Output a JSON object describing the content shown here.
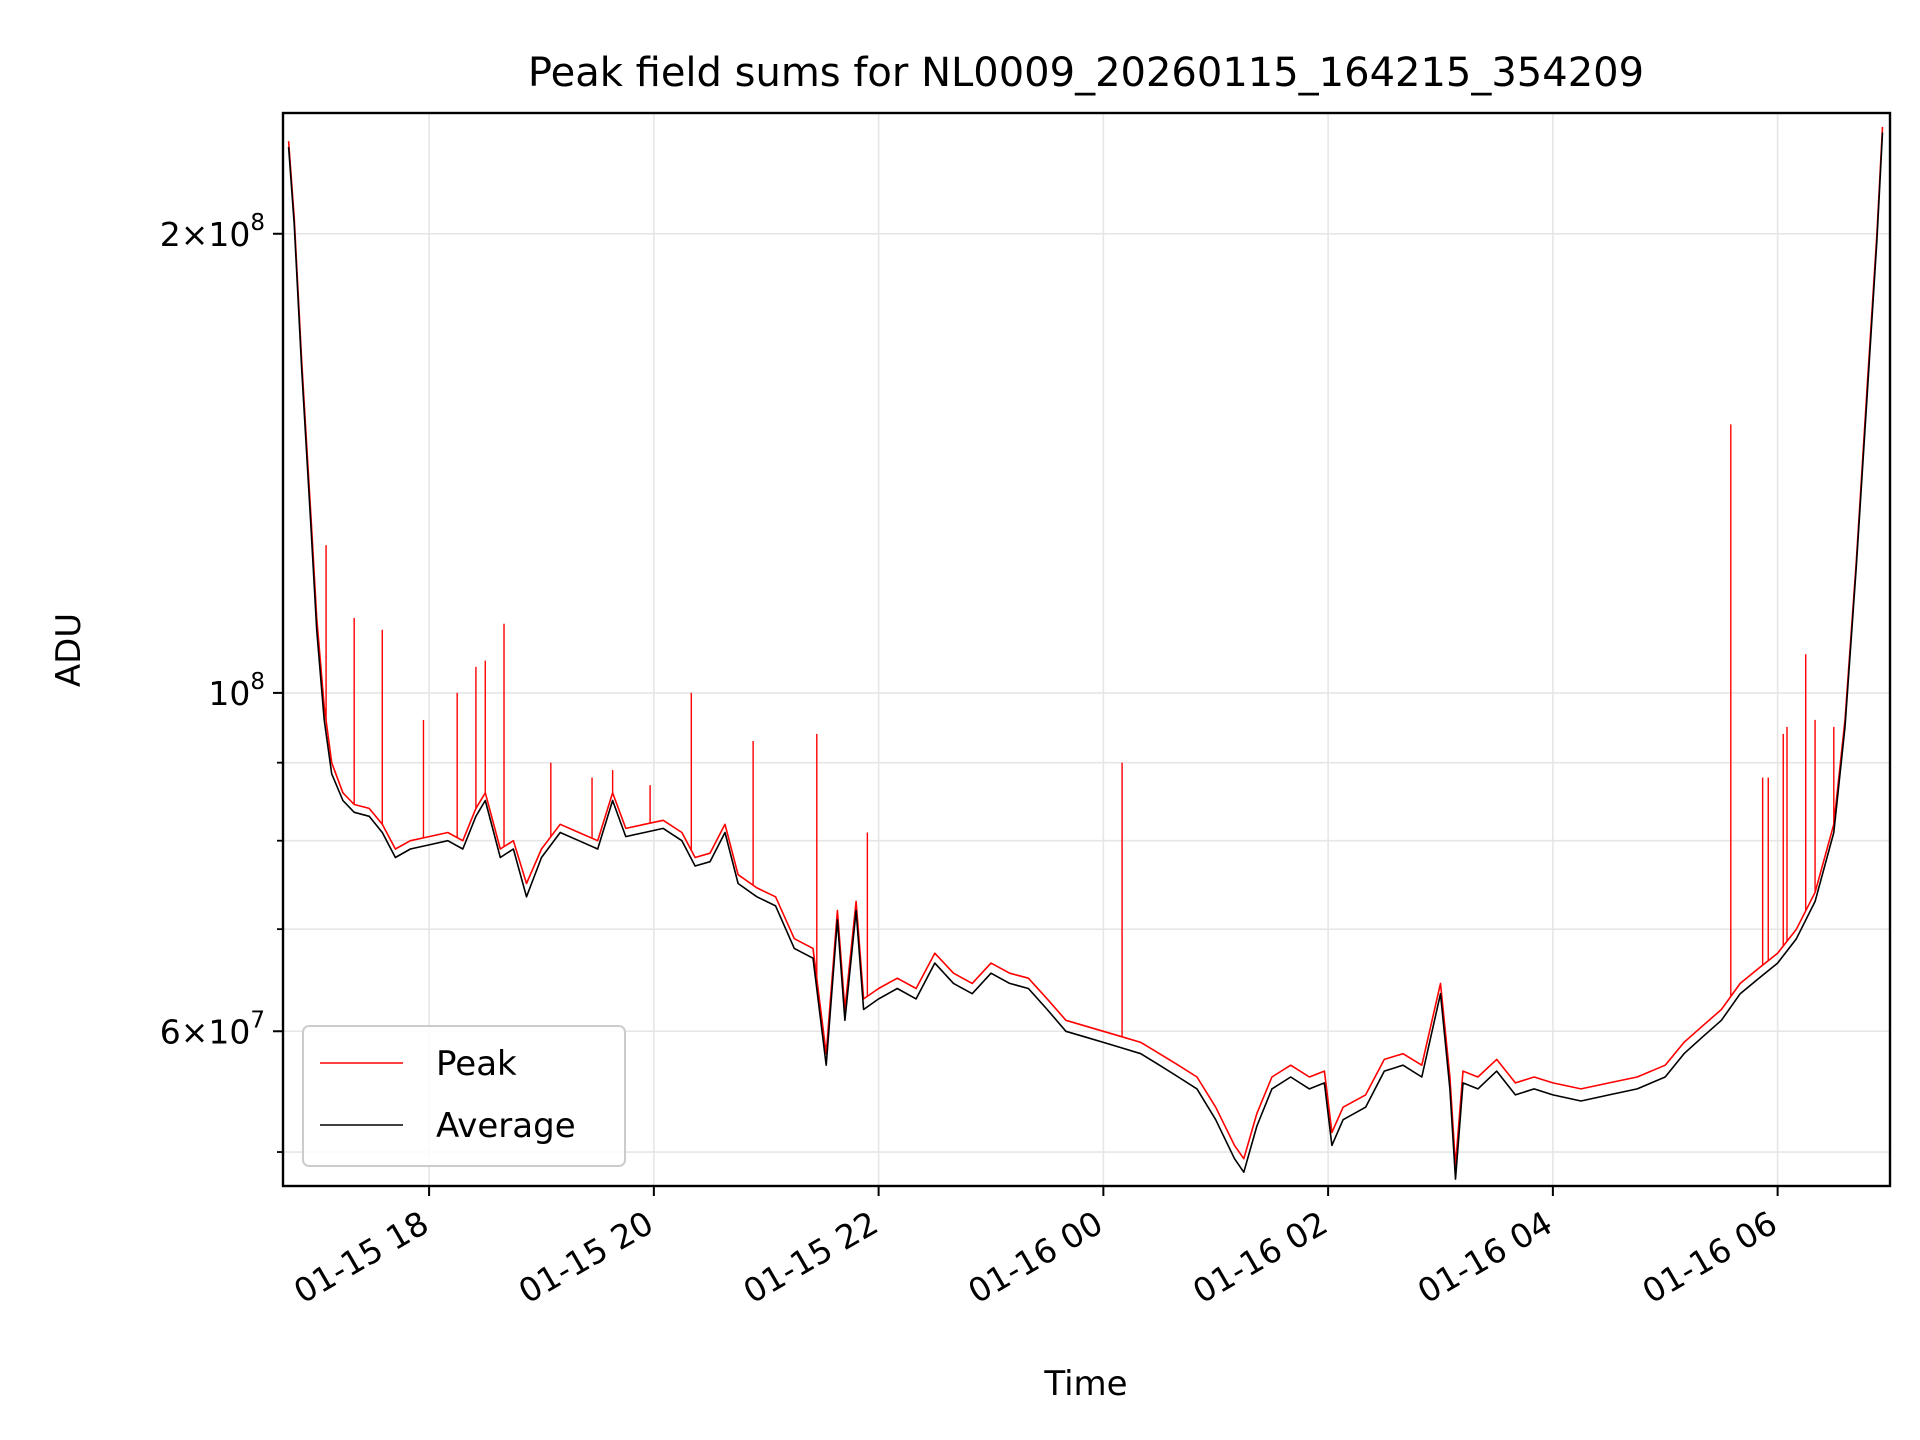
{
  "chart_data": {
    "type": "line",
    "title": "Peak field sums for NL0009_20260115_164215_354209",
    "xlabel": "Time",
    "ylabel": "ADU",
    "y_scale": "log",
    "ylim": [
      47500000,
      240000000
    ],
    "xlim": [
      "2026-01-15 16:42",
      "2026-01-16 07:00"
    ],
    "grid": true,
    "legend_position": "lower left",
    "x_tick_labels": [
      "01-15 18",
      "01-15 20",
      "01-15 22",
      "01-16 00",
      "01-16 02",
      "01-16 04",
      "01-16 06"
    ],
    "x_tick_values": [
      "2026-01-15 18:00",
      "2026-01-15 20:00",
      "2026-01-15 22:00",
      "2026-01-16 00:00",
      "2026-01-16 02:00",
      "2026-01-16 04:00",
      "2026-01-16 06:00"
    ],
    "y_major_ticks": [
      {
        "value": 60000000,
        "base": "6",
        "exp": "7"
      },
      {
        "value": 100000000,
        "base": "",
        "exp": "8"
      },
      {
        "value": 200000000,
        "base": "2",
        "exp": "8"
      }
    ],
    "y_minor_ticks": [
      50000000,
      70000000,
      80000000,
      90000000
    ],
    "series": [
      {
        "name": "Peak",
        "color": "#ff0000",
        "points": [
          [
            "2026-01-15 16:45",
            230000000
          ],
          [
            "2026-01-15 16:48",
            205000000
          ],
          [
            "2026-01-15 16:52",
            165000000
          ],
          [
            "2026-01-15 16:57",
            130000000
          ],
          [
            "2026-01-15 17:00",
            112000000
          ],
          [
            "2026-01-15 17:04",
            98000000
          ],
          [
            "2026-01-15 17:08",
            90000000
          ],
          [
            "2026-01-15 17:14",
            86000000
          ],
          [
            "2026-01-15 17:20",
            84500000
          ],
          [
            "2026-01-15 17:28",
            84000000
          ],
          [
            "2026-01-15 17:35",
            82000000
          ],
          [
            "2026-01-15 17:42",
            79000000
          ],
          [
            "2026-01-15 17:50",
            80000000
          ],
          [
            "2026-01-15 18:00",
            80500000
          ],
          [
            "2026-01-15 18:10",
            81000000
          ],
          [
            "2026-01-15 18:18",
            80000000
          ],
          [
            "2026-01-15 18:25",
            84000000
          ],
          [
            "2026-01-15 18:30",
            86000000
          ],
          [
            "2026-01-15 18:38",
            79000000
          ],
          [
            "2026-01-15 18:45",
            80000000
          ],
          [
            "2026-01-15 18:52",
            75000000
          ],
          [
            "2026-01-15 19:00",
            79000000
          ],
          [
            "2026-01-15 19:10",
            82000000
          ],
          [
            "2026-01-15 19:20",
            81000000
          ],
          [
            "2026-01-15 19:30",
            80000000
          ],
          [
            "2026-01-15 19:38",
            86000000
          ],
          [
            "2026-01-15 19:45",
            81500000
          ],
          [
            "2026-01-15 19:55",
            82000000
          ],
          [
            "2026-01-15 20:05",
            82500000
          ],
          [
            "2026-01-15 20:15",
            81000000
          ],
          [
            "2026-01-15 20:22",
            78000000
          ],
          [
            "2026-01-15 20:30",
            78500000
          ],
          [
            "2026-01-15 20:38",
            82000000
          ],
          [
            "2026-01-15 20:45",
            76000000
          ],
          [
            "2026-01-15 20:55",
            74500000
          ],
          [
            "2026-01-15 21:05",
            73500000
          ],
          [
            "2026-01-15 21:15",
            69000000
          ],
          [
            "2026-01-15 21:25",
            68000000
          ],
          [
            "2026-01-15 21:32",
            58000000
          ],
          [
            "2026-01-15 21:38",
            72000000
          ],
          [
            "2026-01-15 21:42",
            62000000
          ],
          [
            "2026-01-15 21:48",
            73000000
          ],
          [
            "2026-01-15 21:52",
            63000000
          ],
          [
            "2026-01-15 22:00",
            64000000
          ],
          [
            "2026-01-15 22:10",
            65000000
          ],
          [
            "2026-01-15 22:20",
            64000000
          ],
          [
            "2026-01-15 22:30",
            67500000
          ],
          [
            "2026-01-15 22:40",
            65500000
          ],
          [
            "2026-01-15 22:50",
            64500000
          ],
          [
            "2026-01-15 23:00",
            66500000
          ],
          [
            "2026-01-15 23:10",
            65500000
          ],
          [
            "2026-01-15 23:20",
            65000000
          ],
          [
            "2026-01-15 23:30",
            63000000
          ],
          [
            "2026-01-15 23:40",
            61000000
          ],
          [
            "2026-01-15 23:50",
            60500000
          ],
          [
            "2026-01-16 00:00",
            60000000
          ],
          [
            "2026-01-16 00:10",
            59500000
          ],
          [
            "2026-01-16 00:20",
            59000000
          ],
          [
            "2026-01-16 00:30",
            58000000
          ],
          [
            "2026-01-16 00:40",
            57000000
          ],
          [
            "2026-01-16 00:50",
            56000000
          ],
          [
            "2026-01-16 01:00",
            53500000
          ],
          [
            "2026-01-16 01:10",
            50500000
          ],
          [
            "2026-01-16 01:15",
            49500000
          ],
          [
            "2026-01-16 01:22",
            53000000
          ],
          [
            "2026-01-16 01:30",
            56000000
          ],
          [
            "2026-01-16 01:40",
            57000000
          ],
          [
            "2026-01-16 01:50",
            56000000
          ],
          [
            "2026-01-16 01:58",
            56500000
          ],
          [
            "2026-01-16 02:02",
            51500000
          ],
          [
            "2026-01-16 02:08",
            53500000
          ],
          [
            "2026-01-16 02:20",
            54500000
          ],
          [
            "2026-01-16 02:30",
            57500000
          ],
          [
            "2026-01-16 02:40",
            58000000
          ],
          [
            "2026-01-16 02:50",
            57000000
          ],
          [
            "2026-01-16 03:00",
            64500000
          ],
          [
            "2026-01-16 03:05",
            56000000
          ],
          [
            "2026-01-16 03:08",
            49000000
          ],
          [
            "2026-01-16 03:12",
            56500000
          ],
          [
            "2026-01-16 03:20",
            56000000
          ],
          [
            "2026-01-16 03:30",
            57500000
          ],
          [
            "2026-01-16 03:40",
            55500000
          ],
          [
            "2026-01-16 03:50",
            56000000
          ],
          [
            "2026-01-16 04:00",
            55500000
          ],
          [
            "2026-01-16 04:15",
            55000000
          ],
          [
            "2026-01-16 04:30",
            55500000
          ],
          [
            "2026-01-16 04:45",
            56000000
          ],
          [
            "2026-01-16 05:00",
            57000000
          ],
          [
            "2026-01-16 05:10",
            59000000
          ],
          [
            "2026-01-16 05:20",
            60500000
          ],
          [
            "2026-01-16 05:30",
            62000000
          ],
          [
            "2026-01-16 05:40",
            64500000
          ],
          [
            "2026-01-16 05:50",
            66000000
          ],
          [
            "2026-01-16 06:00",
            67500000
          ],
          [
            "2026-01-16 06:10",
            70000000
          ],
          [
            "2026-01-16 06:20",
            74000000
          ],
          [
            "2026-01-16 06:30",
            82000000
          ],
          [
            "2026-01-16 06:36",
            96000000
          ],
          [
            "2026-01-16 06:42",
            122000000
          ],
          [
            "2026-01-16 06:48",
            160000000
          ],
          [
            "2026-01-16 06:53",
            200000000
          ],
          [
            "2026-01-16 06:56",
            235000000
          ]
        ],
        "spikes": [
          [
            "2026-01-15 17:05",
            125000000
          ],
          [
            "2026-01-15 17:20",
            112000000
          ],
          [
            "2026-01-15 17:35",
            110000000
          ],
          [
            "2026-01-15 17:57",
            96000000
          ],
          [
            "2026-01-15 18:15",
            100000000
          ],
          [
            "2026-01-15 18:25",
            104000000
          ],
          [
            "2026-01-15 18:30",
            105000000
          ],
          [
            "2026-01-15 18:40",
            111000000
          ],
          [
            "2026-01-15 19:05",
            90000000
          ],
          [
            "2026-01-15 19:27",
            88000000
          ],
          [
            "2026-01-15 19:38",
            89000000
          ],
          [
            "2026-01-15 19:58",
            87000000
          ],
          [
            "2026-01-15 20:20",
            100000000
          ],
          [
            "2026-01-15 20:53",
            93000000
          ],
          [
            "2026-01-15 21:27",
            94000000
          ],
          [
            "2026-01-15 21:54",
            81000000
          ],
          [
            "2026-01-16 00:10",
            90000000
          ],
          [
            "2026-01-16 05:35",
            150000000
          ],
          [
            "2026-01-16 05:52",
            88000000
          ],
          [
            "2026-01-16 05:55",
            88000000
          ],
          [
            "2026-01-16 06:03",
            94000000
          ],
          [
            "2026-01-16 06:05",
            95000000
          ],
          [
            "2026-01-16 06:15",
            106000000
          ],
          [
            "2026-01-16 06:20",
            96000000
          ],
          [
            "2026-01-16 06:30",
            95000000
          ]
        ]
      },
      {
        "name": "Average",
        "color": "#000000",
        "points": [
          [
            "2026-01-15 16:45",
            228000000
          ],
          [
            "2026-01-15 16:48",
            203000000
          ],
          [
            "2026-01-15 16:52",
            163000000
          ],
          [
            "2026-01-15 16:57",
            128000000
          ],
          [
            "2026-01-15 17:00",
            110000000
          ],
          [
            "2026-01-15 17:04",
            96000000
          ],
          [
            "2026-01-15 17:08",
            88500000
          ],
          [
            "2026-01-15 17:14",
            85000000
          ],
          [
            "2026-01-15 17:20",
            83500000
          ],
          [
            "2026-01-15 17:28",
            83000000
          ],
          [
            "2026-01-15 17:35",
            81000000
          ],
          [
            "2026-01-15 17:42",
            78000000
          ],
          [
            "2026-01-15 17:50",
            79000000
          ],
          [
            "2026-01-15 18:00",
            79500000
          ],
          [
            "2026-01-15 18:10",
            80000000
          ],
          [
            "2026-01-15 18:18",
            79000000
          ],
          [
            "2026-01-15 18:25",
            83000000
          ],
          [
            "2026-01-15 18:30",
            85000000
          ],
          [
            "2026-01-15 18:38",
            78000000
          ],
          [
            "2026-01-15 18:45",
            79000000
          ],
          [
            "2026-01-15 18:52",
            73500000
          ],
          [
            "2026-01-15 19:00",
            78000000
          ],
          [
            "2026-01-15 19:10",
            81000000
          ],
          [
            "2026-01-15 19:20",
            80000000
          ],
          [
            "2026-01-15 19:30",
            79000000
          ],
          [
            "2026-01-15 19:38",
            85000000
          ],
          [
            "2026-01-15 19:45",
            80500000
          ],
          [
            "2026-01-15 19:55",
            81000000
          ],
          [
            "2026-01-15 20:05",
            81500000
          ],
          [
            "2026-01-15 20:15",
            80000000
          ],
          [
            "2026-01-15 20:22",
            77000000
          ],
          [
            "2026-01-15 20:30",
            77500000
          ],
          [
            "2026-01-15 20:38",
            81000000
          ],
          [
            "2026-01-15 20:45",
            75000000
          ],
          [
            "2026-01-15 20:55",
            73500000
          ],
          [
            "2026-01-15 21:05",
            72500000
          ],
          [
            "2026-01-15 21:15",
            68000000
          ],
          [
            "2026-01-15 21:25",
            67000000
          ],
          [
            "2026-01-15 21:32",
            57000000
          ],
          [
            "2026-01-15 21:38",
            71000000
          ],
          [
            "2026-01-15 21:42",
            61000000
          ],
          [
            "2026-01-15 21:48",
            72000000
          ],
          [
            "2026-01-15 21:52",
            62000000
          ],
          [
            "2026-01-15 22:00",
            63000000
          ],
          [
            "2026-01-15 22:10",
            64000000
          ],
          [
            "2026-01-15 22:20",
            63000000
          ],
          [
            "2026-01-15 22:30",
            66500000
          ],
          [
            "2026-01-15 22:40",
            64500000
          ],
          [
            "2026-01-15 22:50",
            63500000
          ],
          [
            "2026-01-15 23:00",
            65500000
          ],
          [
            "2026-01-15 23:10",
            64500000
          ],
          [
            "2026-01-15 23:20",
            64000000
          ],
          [
            "2026-01-15 23:30",
            62000000
          ],
          [
            "2026-01-15 23:40",
            60000000
          ],
          [
            "2026-01-15 23:50",
            59500000
          ],
          [
            "2026-01-16 00:00",
            59000000
          ],
          [
            "2026-01-16 00:10",
            58500000
          ],
          [
            "2026-01-16 00:20",
            58000000
          ],
          [
            "2026-01-16 00:30",
            57000000
          ],
          [
            "2026-01-16 00:40",
            56000000
          ],
          [
            "2026-01-16 00:50",
            55000000
          ],
          [
            "2026-01-16 01:00",
            52500000
          ],
          [
            "2026-01-16 01:10",
            49500000
          ],
          [
            "2026-01-16 01:15",
            48500000
          ],
          [
            "2026-01-16 01:22",
            52000000
          ],
          [
            "2026-01-16 01:30",
            55000000
          ],
          [
            "2026-01-16 01:40",
            56000000
          ],
          [
            "2026-01-16 01:50",
            55000000
          ],
          [
            "2026-01-16 01:58",
            55500000
          ],
          [
            "2026-01-16 02:02",
            50500000
          ],
          [
            "2026-01-16 02:08",
            52500000
          ],
          [
            "2026-01-16 02:20",
            53500000
          ],
          [
            "2026-01-16 02:30",
            56500000
          ],
          [
            "2026-01-16 02:40",
            57000000
          ],
          [
            "2026-01-16 02:50",
            56000000
          ],
          [
            "2026-01-16 03:00",
            63500000
          ],
          [
            "2026-01-16 03:05",
            55000000
          ],
          [
            "2026-01-16 03:08",
            48000000
          ],
          [
            "2026-01-16 03:12",
            55500000
          ],
          [
            "2026-01-16 03:20",
            55000000
          ],
          [
            "2026-01-16 03:30",
            56500000
          ],
          [
            "2026-01-16 03:40",
            54500000
          ],
          [
            "2026-01-16 03:50",
            55000000
          ],
          [
            "2026-01-16 04:00",
            54500000
          ],
          [
            "2026-01-16 04:15",
            54000000
          ],
          [
            "2026-01-16 04:30",
            54500000
          ],
          [
            "2026-01-16 04:45",
            55000000
          ],
          [
            "2026-01-16 05:00",
            56000000
          ],
          [
            "2026-01-16 05:10",
            58000000
          ],
          [
            "2026-01-16 05:20",
            59500000
          ],
          [
            "2026-01-16 05:30",
            61000000
          ],
          [
            "2026-01-16 05:40",
            63500000
          ],
          [
            "2026-01-16 05:50",
            65000000
          ],
          [
            "2026-01-16 06:00",
            66500000
          ],
          [
            "2026-01-16 06:10",
            69000000
          ],
          [
            "2026-01-16 06:20",
            73000000
          ],
          [
            "2026-01-16 06:30",
            81000000
          ],
          [
            "2026-01-16 06:36",
            95000000
          ],
          [
            "2026-01-16 06:42",
            121000000
          ],
          [
            "2026-01-16 06:48",
            158000000
          ],
          [
            "2026-01-16 06:53",
            198000000
          ],
          [
            "2026-01-16 06:56",
            233000000
          ]
        ],
        "spikes": []
      }
    ]
  }
}
